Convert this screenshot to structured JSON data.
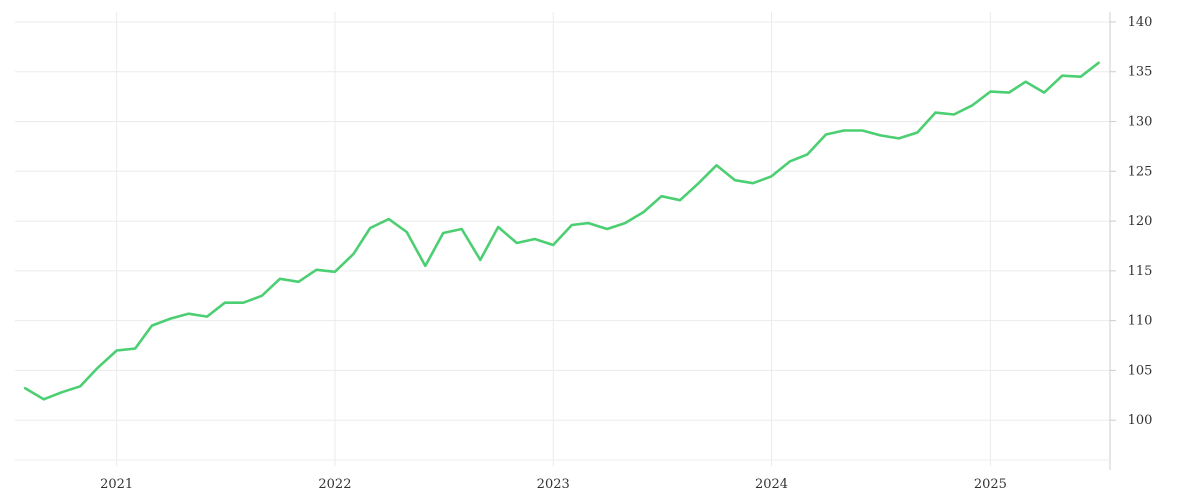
{
  "chart_data": {
    "type": "line",
    "title": "",
    "xlabel": "",
    "ylabel": "",
    "x_ticks": [
      "2021",
      "2022",
      "2023",
      "2024",
      "2025"
    ],
    "y_ticks": [
      100,
      105,
      110,
      115,
      120,
      125,
      130,
      135,
      140
    ],
    "ylim": [
      96,
      141
    ],
    "xlim": [
      "2020-07-15",
      "2025-07-20"
    ],
    "grid": true,
    "y_axis_position": "right",
    "line_color": "#4ccf72",
    "series": [
      {
        "name": "",
        "points": [
          [
            "2020-08-01",
            103.2
          ],
          [
            "2020-09-01",
            102.1
          ],
          [
            "2020-10-01",
            102.8
          ],
          [
            "2020-11-01",
            103.4
          ],
          [
            "2020-12-01",
            105.3
          ],
          [
            "2021-01-01",
            107.0
          ],
          [
            "2021-02-01",
            107.2
          ],
          [
            "2021-03-01",
            109.5
          ],
          [
            "2021-04-01",
            110.2
          ],
          [
            "2021-05-01",
            110.7
          ],
          [
            "2021-06-01",
            110.4
          ],
          [
            "2021-07-01",
            111.8
          ],
          [
            "2021-08-01",
            111.8
          ],
          [
            "2021-09-01",
            112.5
          ],
          [
            "2021-10-01",
            114.2
          ],
          [
            "2021-11-01",
            113.9
          ],
          [
            "2021-12-01",
            115.1
          ],
          [
            "2022-01-01",
            114.9
          ],
          [
            "2022-02-01",
            116.7
          ],
          [
            "2022-03-01",
            119.3
          ],
          [
            "2022-04-01",
            120.2
          ],
          [
            "2022-05-01",
            118.9
          ],
          [
            "2022-06-01",
            115.5
          ],
          [
            "2022-07-01",
            118.8
          ],
          [
            "2022-08-01",
            119.2
          ],
          [
            "2022-09-01",
            116.1
          ],
          [
            "2022-10-01",
            119.4
          ],
          [
            "2022-11-01",
            117.8
          ],
          [
            "2022-12-01",
            118.2
          ],
          [
            "2023-01-01",
            117.6
          ],
          [
            "2023-02-01",
            119.6
          ],
          [
            "2023-03-01",
            119.8
          ],
          [
            "2023-04-01",
            119.2
          ],
          [
            "2023-05-01",
            119.8
          ],
          [
            "2023-06-01",
            120.9
          ],
          [
            "2023-07-01",
            122.5
          ],
          [
            "2023-08-01",
            122.1
          ],
          [
            "2023-09-01",
            123.8
          ],
          [
            "2023-10-01",
            125.6
          ],
          [
            "2023-11-01",
            124.1
          ],
          [
            "2023-12-01",
            123.8
          ],
          [
            "2024-01-01",
            124.5
          ],
          [
            "2024-02-01",
            126.0
          ],
          [
            "2024-03-01",
            126.7
          ],
          [
            "2024-04-01",
            128.7
          ],
          [
            "2024-05-01",
            129.1
          ],
          [
            "2024-06-01",
            129.1
          ],
          [
            "2024-07-01",
            128.6
          ],
          [
            "2024-08-01",
            128.3
          ],
          [
            "2024-09-01",
            128.9
          ],
          [
            "2024-10-01",
            130.9
          ],
          [
            "2024-11-01",
            130.7
          ],
          [
            "2024-12-01",
            131.6
          ],
          [
            "2025-01-01",
            133.0
          ],
          [
            "2025-02-01",
            132.9
          ],
          [
            "2025-03-01",
            134.0
          ],
          [
            "2025-04-01",
            132.9
          ],
          [
            "2025-05-01",
            134.6
          ],
          [
            "2025-06-01",
            134.5
          ],
          [
            "2025-07-01",
            135.9
          ]
        ]
      }
    ]
  }
}
